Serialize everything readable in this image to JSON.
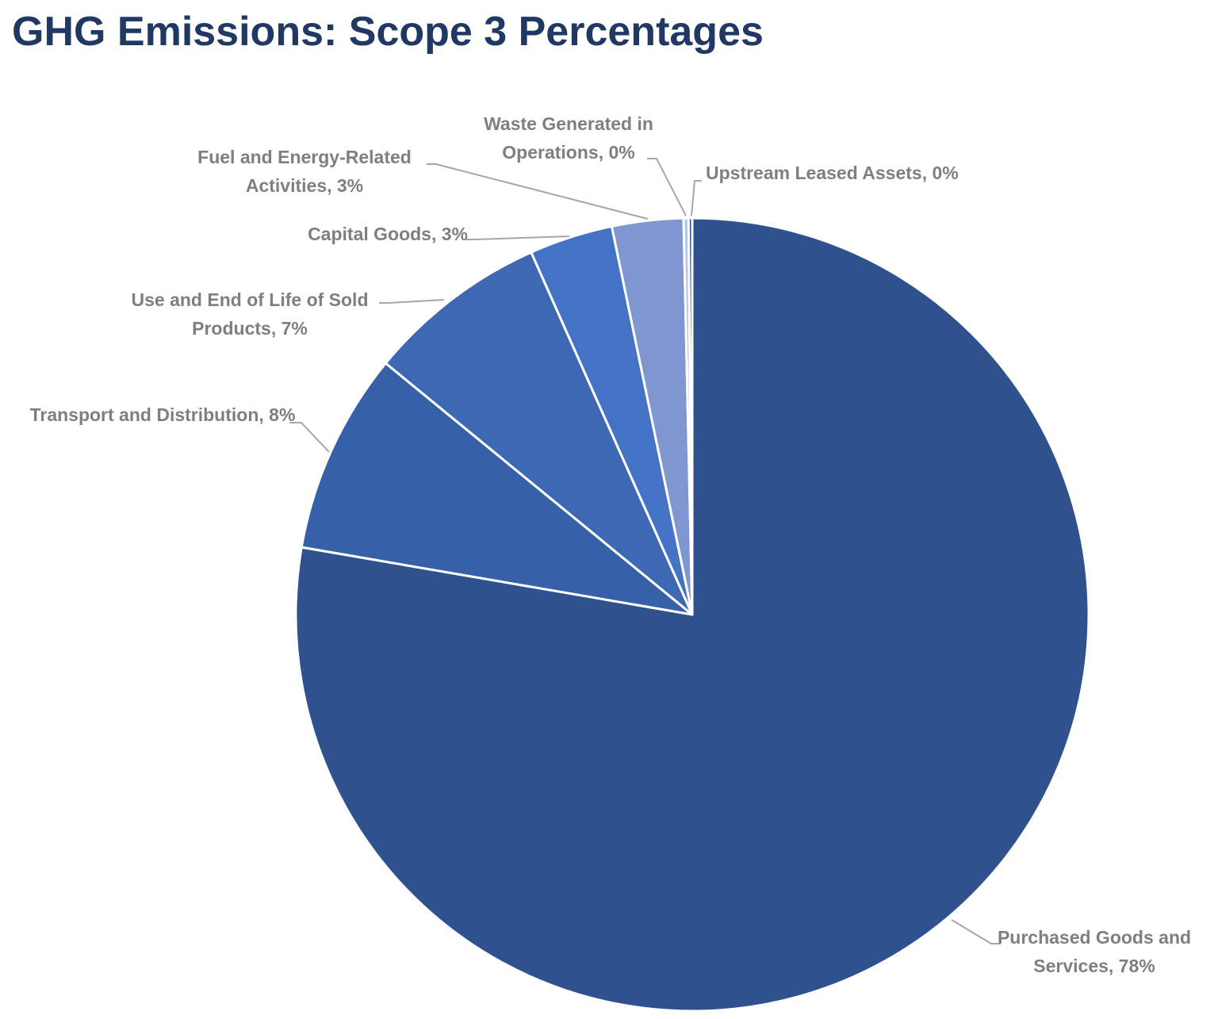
{
  "chart_data": {
    "type": "pie",
    "title": "GHG Emissions: Scope 3 Percentages",
    "value_labels": [
      "Purchased Goods and Services, 78%",
      "Transport and Distribution, 8%",
      "Use and End of Life of Sold Products, 7%",
      "Capital Goods, 3%",
      "Fuel and Energy-Related Activities, 3%",
      "Waste Generated in Operations, 0%",
      "Upstream Leased Assets, 0%"
    ],
    "values": [
      77.6,
      8.2,
      7.4,
      3.4,
      2.9,
      0.2,
      0.15
    ],
    "colors": [
      "#2f528f",
      "#3660a8",
      "#3d68b3",
      "#4472c4",
      "#8096d0",
      "#b4c2e6",
      "#2f528f"
    ]
  }
}
